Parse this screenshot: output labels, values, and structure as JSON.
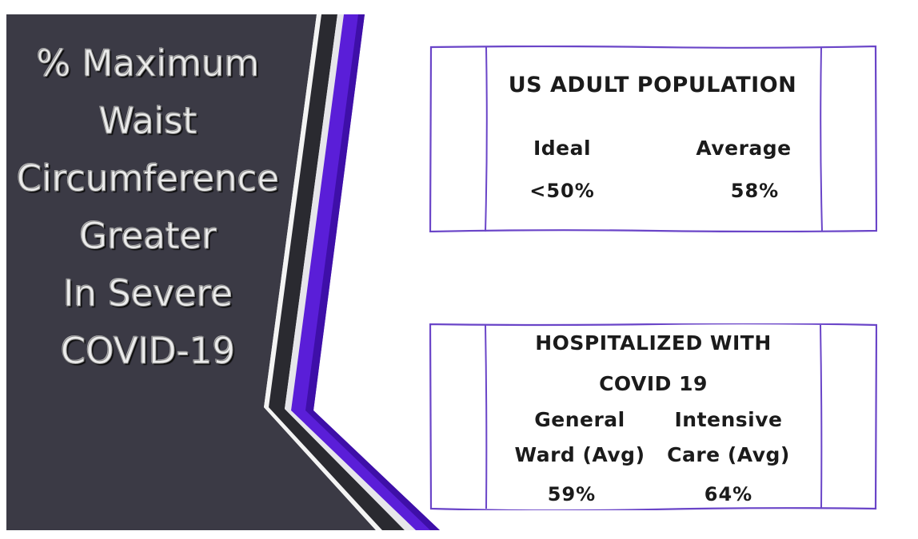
{
  "title": {
    "lines": [
      "% Maximum",
      "Waist",
      "Circumference",
      "Greater",
      "In Severe",
      "COVID-19"
    ]
  },
  "us_adult": {
    "heading": "US ADULT POPULATION",
    "ideal_label": "Ideal",
    "ideal_value": "<50%",
    "average_label": "Average",
    "average_value": "58%"
  },
  "hospitalized": {
    "heading_line1": "HOSPITALIZED WITH",
    "heading_line2": "COVID 19",
    "general_label_line1": "General",
    "general_label_line2": "Ward (Avg)",
    "general_value": "59%",
    "icu_label_line1": "Intensive",
    "icu_label_line2": "Care (Avg)",
    "icu_value": "64%"
  },
  "colors": {
    "panel_dark": "#3b3a45",
    "accent_purple": "#5a1ed8",
    "stripe_dark": "#2a2a30",
    "card_border": "#6a45c8"
  }
}
